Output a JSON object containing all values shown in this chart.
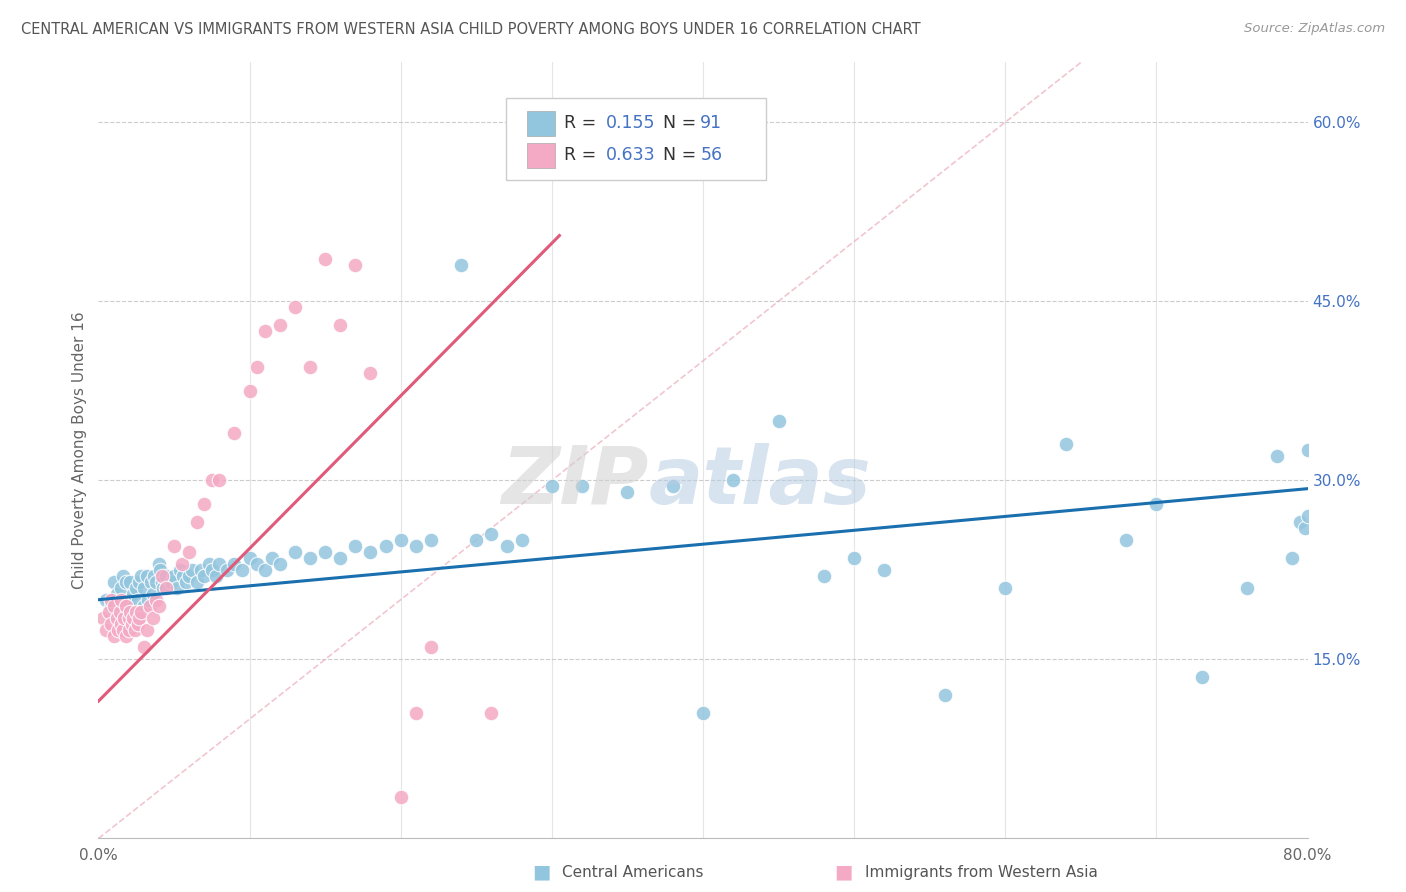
{
  "title": "CENTRAL AMERICAN VS IMMIGRANTS FROM WESTERN ASIA CHILD POVERTY AMONG BOYS UNDER 16 CORRELATION CHART",
  "source": "Source: ZipAtlas.com",
  "ylabel": "Child Poverty Among Boys Under 16",
  "xlim": [
    0.0,
    0.8
  ],
  "ylim": [
    0.0,
    0.65
  ],
  "blue_R": "0.155",
  "blue_N": "91",
  "pink_R": "0.633",
  "pink_N": "56",
  "blue_color": "#92c5de",
  "pink_color": "#f4a9c4",
  "blue_line_color": "#1a6faf",
  "pink_line_color": "#e05a7a",
  "blue_line_x": [
    0.0,
    0.8
  ],
  "blue_line_y": [
    0.2,
    0.293
  ],
  "pink_line_x": [
    0.0,
    0.305
  ],
  "pink_line_y": [
    0.115,
    0.505
  ],
  "ref_line_x": [
    0.0,
    0.65
  ],
  "ref_line_y": [
    0.0,
    0.65
  ],
  "blue_scatter_x": [
    0.005,
    0.008,
    0.01,
    0.012,
    0.013,
    0.015,
    0.016,
    0.018,
    0.019,
    0.02,
    0.021,
    0.022,
    0.023,
    0.025,
    0.026,
    0.027,
    0.028,
    0.03,
    0.03,
    0.032,
    0.033,
    0.035,
    0.036,
    0.037,
    0.038,
    0.04,
    0.041,
    0.042,
    0.043,
    0.045,
    0.048,
    0.05,
    0.052,
    0.054,
    0.056,
    0.058,
    0.06,
    0.062,
    0.065,
    0.068,
    0.07,
    0.073,
    0.075,
    0.078,
    0.08,
    0.085,
    0.09,
    0.095,
    0.1,
    0.105,
    0.11,
    0.115,
    0.12,
    0.13,
    0.14,
    0.15,
    0.16,
    0.17,
    0.18,
    0.19,
    0.2,
    0.21,
    0.22,
    0.24,
    0.25,
    0.26,
    0.27,
    0.28,
    0.3,
    0.32,
    0.35,
    0.38,
    0.4,
    0.42,
    0.45,
    0.48,
    0.5,
    0.52,
    0.56,
    0.6,
    0.64,
    0.68,
    0.7,
    0.73,
    0.76,
    0.78,
    0.79,
    0.795,
    0.798,
    0.8,
    0.8
  ],
  "blue_scatter_y": [
    0.2,
    0.195,
    0.215,
    0.205,
    0.19,
    0.21,
    0.22,
    0.215,
    0.195,
    0.2,
    0.215,
    0.185,
    0.205,
    0.21,
    0.2,
    0.215,
    0.22,
    0.195,
    0.21,
    0.22,
    0.2,
    0.215,
    0.205,
    0.22,
    0.215,
    0.23,
    0.225,
    0.215,
    0.21,
    0.22,
    0.215,
    0.22,
    0.21,
    0.225,
    0.22,
    0.215,
    0.22,
    0.225,
    0.215,
    0.225,
    0.22,
    0.23,
    0.225,
    0.22,
    0.23,
    0.225,
    0.23,
    0.225,
    0.235,
    0.23,
    0.225,
    0.235,
    0.23,
    0.24,
    0.235,
    0.24,
    0.235,
    0.245,
    0.24,
    0.245,
    0.25,
    0.245,
    0.25,
    0.48,
    0.25,
    0.255,
    0.245,
    0.25,
    0.295,
    0.295,
    0.29,
    0.295,
    0.105,
    0.3,
    0.35,
    0.22,
    0.235,
    0.225,
    0.12,
    0.21,
    0.33,
    0.25,
    0.28,
    0.135,
    0.21,
    0.32,
    0.235,
    0.265,
    0.26,
    0.325,
    0.27
  ],
  "pink_scatter_x": [
    0.003,
    0.005,
    0.007,
    0.008,
    0.008,
    0.01,
    0.01,
    0.012,
    0.013,
    0.014,
    0.015,
    0.015,
    0.016,
    0.017,
    0.018,
    0.018,
    0.02,
    0.02,
    0.021,
    0.022,
    0.023,
    0.024,
    0.025,
    0.026,
    0.027,
    0.028,
    0.03,
    0.032,
    0.034,
    0.036,
    0.038,
    0.04,
    0.042,
    0.045,
    0.05,
    0.055,
    0.06,
    0.065,
    0.07,
    0.075,
    0.08,
    0.09,
    0.1,
    0.105,
    0.11,
    0.12,
    0.13,
    0.14,
    0.15,
    0.16,
    0.17,
    0.18,
    0.2,
    0.21,
    0.22,
    0.26
  ],
  "pink_scatter_y": [
    0.185,
    0.175,
    0.19,
    0.18,
    0.2,
    0.17,
    0.195,
    0.185,
    0.175,
    0.19,
    0.18,
    0.2,
    0.175,
    0.185,
    0.17,
    0.195,
    0.175,
    0.185,
    0.19,
    0.18,
    0.185,
    0.175,
    0.19,
    0.18,
    0.185,
    0.19,
    0.16,
    0.175,
    0.195,
    0.185,
    0.2,
    0.195,
    0.22,
    0.21,
    0.245,
    0.23,
    0.24,
    0.265,
    0.28,
    0.3,
    0.3,
    0.34,
    0.375,
    0.395,
    0.425,
    0.43,
    0.445,
    0.395,
    0.485,
    0.43,
    0.48,
    0.39,
    0.035,
    0.105,
    0.16,
    0.105
  ],
  "background_color": "#ffffff",
  "grid_color": "#cccccc",
  "watermark_zip_color": "#d8d8d8",
  "watermark_atlas_color": "#b8cce4"
}
